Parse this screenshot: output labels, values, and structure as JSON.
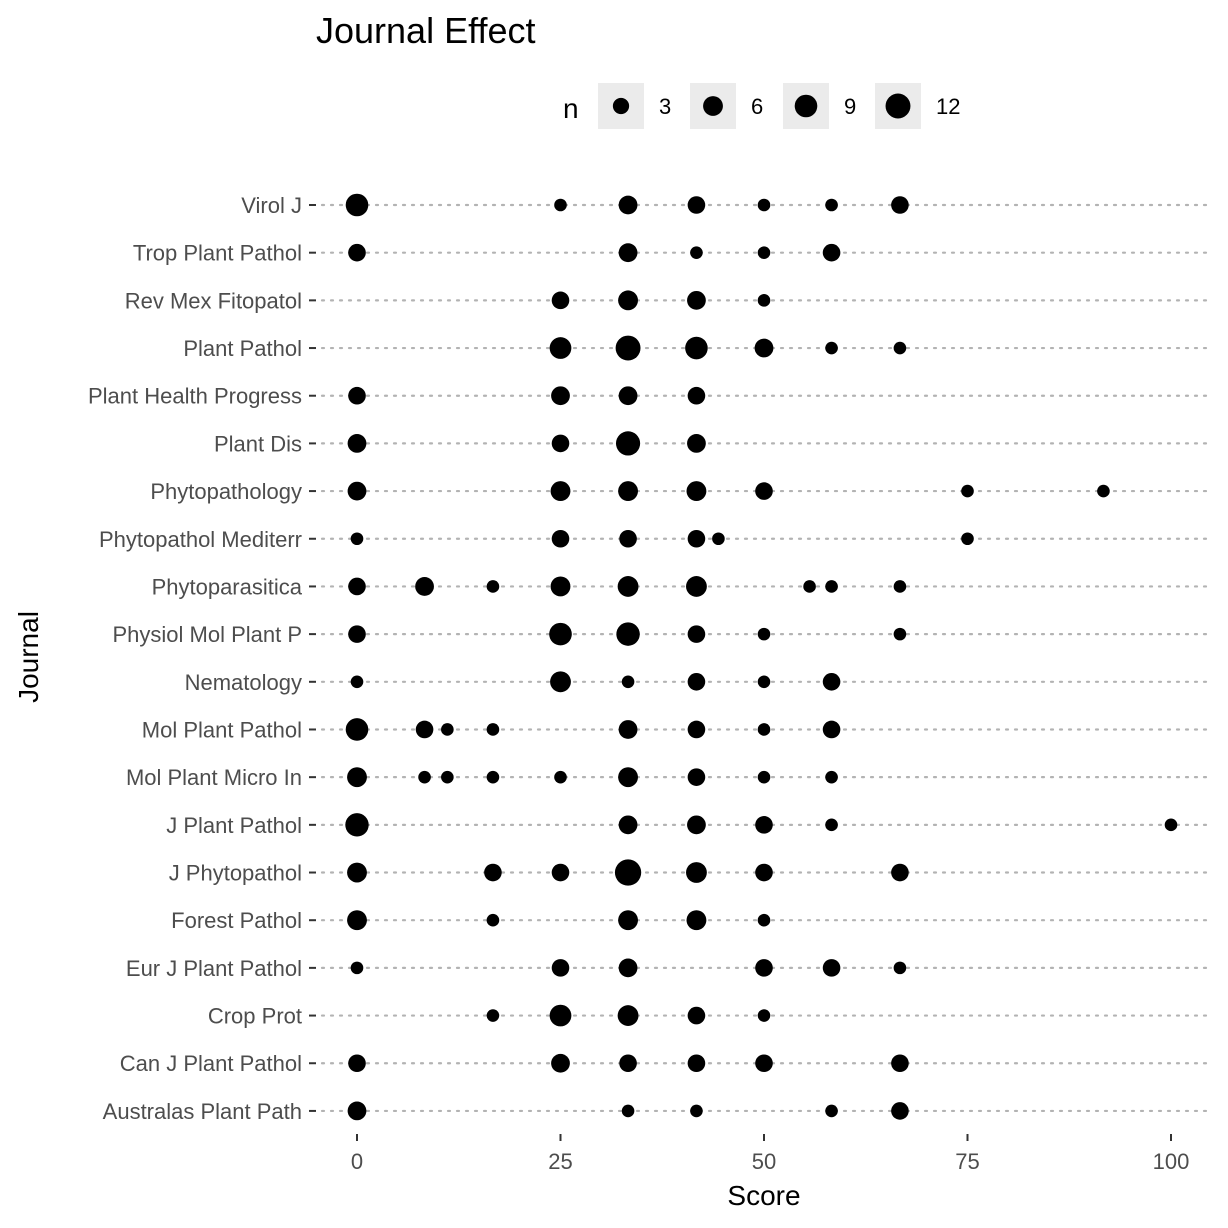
{
  "chart_data": {
    "type": "scatter",
    "title": "Journal Effect",
    "xlabel": "Score",
    "ylabel": "Journal",
    "xlim": [
      -3,
      104
    ],
    "x_ticks": [
      0,
      25,
      50,
      75,
      100
    ],
    "grid": "horizontal dotted",
    "legend": {
      "title": "n",
      "position": "top",
      "sizes": [
        3,
        6,
        9,
        12
      ]
    },
    "point_color": "#000000",
    "categories": [
      "Australas Plant Path",
      "Can J Plant Pathol",
      "Crop Prot",
      "Eur J Plant Pathol",
      "Forest Pathol",
      "J Phytopathol",
      "J Plant Pathol",
      "Mol Plant Micro In",
      "Mol Plant Pathol",
      "Nematology",
      "Physiol Mol Plant P",
      "Phytoparasitica",
      "Phytopathol Mediterr",
      "Phytopathology",
      "Plant Dis",
      "Plant Health Progress",
      "Plant Pathol",
      "Rev Mex Fitopatol",
      "Trop Plant Pathol",
      "Virol J"
    ],
    "points": [
      {
        "journal": "Virol J",
        "x": 0,
        "n": 9
      },
      {
        "journal": "Virol J",
        "x": 25,
        "n": 1
      },
      {
        "journal": "Virol J",
        "x": 33.3,
        "n": 5
      },
      {
        "journal": "Virol J",
        "x": 41.7,
        "n": 4
      },
      {
        "journal": "Virol J",
        "x": 50,
        "n": 1
      },
      {
        "journal": "Virol J",
        "x": 58.3,
        "n": 1
      },
      {
        "journal": "Virol J",
        "x": 66.7,
        "n": 4
      },
      {
        "journal": "Trop Plant Pathol",
        "x": 0,
        "n": 4
      },
      {
        "journal": "Trop Plant Pathol",
        "x": 33.3,
        "n": 5
      },
      {
        "journal": "Trop Plant Pathol",
        "x": 41.7,
        "n": 1
      },
      {
        "journal": "Trop Plant Pathol",
        "x": 50,
        "n": 1
      },
      {
        "journal": "Trop Plant Pathol",
        "x": 58.3,
        "n": 4
      },
      {
        "journal": "Rev Mex Fitopatol",
        "x": 25,
        "n": 4
      },
      {
        "journal": "Rev Mex Fitopatol",
        "x": 33.3,
        "n": 6
      },
      {
        "journal": "Rev Mex Fitopatol",
        "x": 41.7,
        "n": 5
      },
      {
        "journal": "Rev Mex Fitopatol",
        "x": 50,
        "n": 1
      },
      {
        "journal": "Plant Pathol",
        "x": 25,
        "n": 8
      },
      {
        "journal": "Plant Pathol",
        "x": 33.3,
        "n": 12
      },
      {
        "journal": "Plant Pathol",
        "x": 41.7,
        "n": 9
      },
      {
        "journal": "Plant Pathol",
        "x": 50,
        "n": 5
      },
      {
        "journal": "Plant Pathol",
        "x": 58.3,
        "n": 1
      },
      {
        "journal": "Plant Pathol",
        "x": 66.7,
        "n": 1
      },
      {
        "journal": "Plant Health Progress",
        "x": 0,
        "n": 4
      },
      {
        "journal": "Plant Health Progress",
        "x": 25,
        "n": 5
      },
      {
        "journal": "Plant Health Progress",
        "x": 33.3,
        "n": 5
      },
      {
        "journal": "Plant Health Progress",
        "x": 41.7,
        "n": 4
      },
      {
        "journal": "Plant Dis",
        "x": 0,
        "n": 5
      },
      {
        "journal": "Plant Dis",
        "x": 25,
        "n": 4
      },
      {
        "journal": "Plant Dis",
        "x": 33.3,
        "n": 11
      },
      {
        "journal": "Plant Dis",
        "x": 41.7,
        "n": 5
      },
      {
        "journal": "Phytopathology",
        "x": 0,
        "n": 5
      },
      {
        "journal": "Phytopathology",
        "x": 25,
        "n": 6
      },
      {
        "journal": "Phytopathology",
        "x": 33.3,
        "n": 6
      },
      {
        "journal": "Phytopathology",
        "x": 41.7,
        "n": 6
      },
      {
        "journal": "Phytopathology",
        "x": 50,
        "n": 4
      },
      {
        "journal": "Phytopathology",
        "x": 75,
        "n": 1
      },
      {
        "journal": "Phytopathology",
        "x": 91.7,
        "n": 1
      },
      {
        "journal": "Phytopathol Mediterr",
        "x": 0,
        "n": 1
      },
      {
        "journal": "Phytopathol Mediterr",
        "x": 25,
        "n": 4
      },
      {
        "journal": "Phytopathol Mediterr",
        "x": 33.3,
        "n": 4
      },
      {
        "journal": "Phytopathol Mediterr",
        "x": 41.7,
        "n": 4
      },
      {
        "journal": "Phytopathol Mediterr",
        "x": 44.4,
        "n": 1
      },
      {
        "journal": "Phytopathol Mediterr",
        "x": 75,
        "n": 1
      },
      {
        "journal": "Phytoparasitica",
        "x": 0,
        "n": 4
      },
      {
        "journal": "Phytoparasitica",
        "x": 8.3,
        "n": 5
      },
      {
        "journal": "Phytoparasitica",
        "x": 16.7,
        "n": 1
      },
      {
        "journal": "Phytoparasitica",
        "x": 25,
        "n": 6
      },
      {
        "journal": "Phytoparasitica",
        "x": 33.3,
        "n": 7
      },
      {
        "journal": "Phytoparasitica",
        "x": 41.7,
        "n": 7
      },
      {
        "journal": "Phytoparasitica",
        "x": 55.6,
        "n": 1
      },
      {
        "journal": "Phytoparasitica",
        "x": 58.3,
        "n": 1
      },
      {
        "journal": "Phytoparasitica",
        "x": 66.7,
        "n": 1
      },
      {
        "journal": "Physiol Mol Plant P",
        "x": 0,
        "n": 4
      },
      {
        "journal": "Physiol Mol Plant P",
        "x": 25,
        "n": 9
      },
      {
        "journal": "Physiol Mol Plant P",
        "x": 33.3,
        "n": 10
      },
      {
        "journal": "Physiol Mol Plant P",
        "x": 41.7,
        "n": 4
      },
      {
        "journal": "Physiol Mol Plant P",
        "x": 50,
        "n": 1
      },
      {
        "journal": "Physiol Mol Plant P",
        "x": 66.7,
        "n": 1
      },
      {
        "journal": "Nematology",
        "x": 0,
        "n": 1
      },
      {
        "journal": "Nematology",
        "x": 25,
        "n": 7
      },
      {
        "journal": "Nematology",
        "x": 33.3,
        "n": 1
      },
      {
        "journal": "Nematology",
        "x": 41.7,
        "n": 4
      },
      {
        "journal": "Nematology",
        "x": 50,
        "n": 1
      },
      {
        "journal": "Nematology",
        "x": 58.3,
        "n": 4
      },
      {
        "journal": "Mol Plant Pathol",
        "x": 0,
        "n": 9
      },
      {
        "journal": "Mol Plant Pathol",
        "x": 8.3,
        "n": 4
      },
      {
        "journal": "Mol Plant Pathol",
        "x": 11.1,
        "n": 1
      },
      {
        "journal": "Mol Plant Pathol",
        "x": 16.7,
        "n": 1
      },
      {
        "journal": "Mol Plant Pathol",
        "x": 33.3,
        "n": 5
      },
      {
        "journal": "Mol Plant Pathol",
        "x": 41.7,
        "n": 4
      },
      {
        "journal": "Mol Plant Pathol",
        "x": 50,
        "n": 1
      },
      {
        "journal": "Mol Plant Pathol",
        "x": 58.3,
        "n": 4
      },
      {
        "journal": "Mol Plant Micro In",
        "x": 0,
        "n": 6
      },
      {
        "journal": "Mol Plant Micro In",
        "x": 8.3,
        "n": 1
      },
      {
        "journal": "Mol Plant Micro In",
        "x": 11.1,
        "n": 1
      },
      {
        "journal": "Mol Plant Micro In",
        "x": 16.7,
        "n": 1
      },
      {
        "journal": "Mol Plant Micro In",
        "x": 25,
        "n": 1
      },
      {
        "journal": "Mol Plant Micro In",
        "x": 33.3,
        "n": 6
      },
      {
        "journal": "Mol Plant Micro In",
        "x": 41.7,
        "n": 4
      },
      {
        "journal": "Mol Plant Micro In",
        "x": 50,
        "n": 1
      },
      {
        "journal": "Mol Plant Micro In",
        "x": 58.3,
        "n": 1
      },
      {
        "journal": "J Plant Pathol",
        "x": 0,
        "n": 10
      },
      {
        "journal": "J Plant Pathol",
        "x": 33.3,
        "n": 5
      },
      {
        "journal": "J Plant Pathol",
        "x": 41.7,
        "n": 5
      },
      {
        "journal": "J Plant Pathol",
        "x": 50,
        "n": 4
      },
      {
        "journal": "J Plant Pathol",
        "x": 58.3,
        "n": 1
      },
      {
        "journal": "J Plant Pathol",
        "x": 100,
        "n": 1
      },
      {
        "journal": "J Phytopathol",
        "x": 0,
        "n": 6
      },
      {
        "journal": "J Phytopathol",
        "x": 16.7,
        "n": 4
      },
      {
        "journal": "J Phytopathol",
        "x": 25,
        "n": 4
      },
      {
        "journal": "J Phytopathol",
        "x": 33.3,
        "n": 14
      },
      {
        "journal": "J Phytopathol",
        "x": 41.7,
        "n": 7
      },
      {
        "journal": "J Phytopathol",
        "x": 50,
        "n": 4
      },
      {
        "journal": "J Phytopathol",
        "x": 66.7,
        "n": 4
      },
      {
        "journal": "Forest Pathol",
        "x": 0,
        "n": 6
      },
      {
        "journal": "Forest Pathol",
        "x": 16.7,
        "n": 1
      },
      {
        "journal": "Forest Pathol",
        "x": 33.3,
        "n": 6
      },
      {
        "journal": "Forest Pathol",
        "x": 41.7,
        "n": 6
      },
      {
        "journal": "Forest Pathol",
        "x": 50,
        "n": 1
      },
      {
        "journal": "Eur J Plant Pathol",
        "x": 0,
        "n": 1
      },
      {
        "journal": "Eur J Plant Pathol",
        "x": 25,
        "n": 4
      },
      {
        "journal": "Eur J Plant Pathol",
        "x": 33.3,
        "n": 5
      },
      {
        "journal": "Eur J Plant Pathol",
        "x": 50,
        "n": 4
      },
      {
        "journal": "Eur J Plant Pathol",
        "x": 58.3,
        "n": 4
      },
      {
        "journal": "Eur J Plant Pathol",
        "x": 66.7,
        "n": 1
      },
      {
        "journal": "Crop Prot",
        "x": 16.7,
        "n": 1
      },
      {
        "journal": "Crop Prot",
        "x": 25,
        "n": 8
      },
      {
        "journal": "Crop Prot",
        "x": 33.3,
        "n": 7
      },
      {
        "journal": "Crop Prot",
        "x": 41.7,
        "n": 4
      },
      {
        "journal": "Crop Prot",
        "x": 50,
        "n": 1
      },
      {
        "journal": "Can J Plant Pathol",
        "x": 0,
        "n": 4
      },
      {
        "journal": "Can J Plant Pathol",
        "x": 25,
        "n": 5
      },
      {
        "journal": "Can J Plant Pathol",
        "x": 33.3,
        "n": 4
      },
      {
        "journal": "Can J Plant Pathol",
        "x": 41.7,
        "n": 4
      },
      {
        "journal": "Can J Plant Pathol",
        "x": 50,
        "n": 4
      },
      {
        "journal": "Can J Plant Pathol",
        "x": 66.7,
        "n": 4
      },
      {
        "journal": "Australas Plant Path",
        "x": 0,
        "n": 5
      },
      {
        "journal": "Australas Plant Path",
        "x": 33.3,
        "n": 1
      },
      {
        "journal": "Australas Plant Path",
        "x": 41.7,
        "n": 1
      },
      {
        "journal": "Australas Plant Path",
        "x": 58.3,
        "n": 1
      },
      {
        "journal": "Australas Plant Path",
        "x": 66.7,
        "n": 4
      }
    ]
  }
}
